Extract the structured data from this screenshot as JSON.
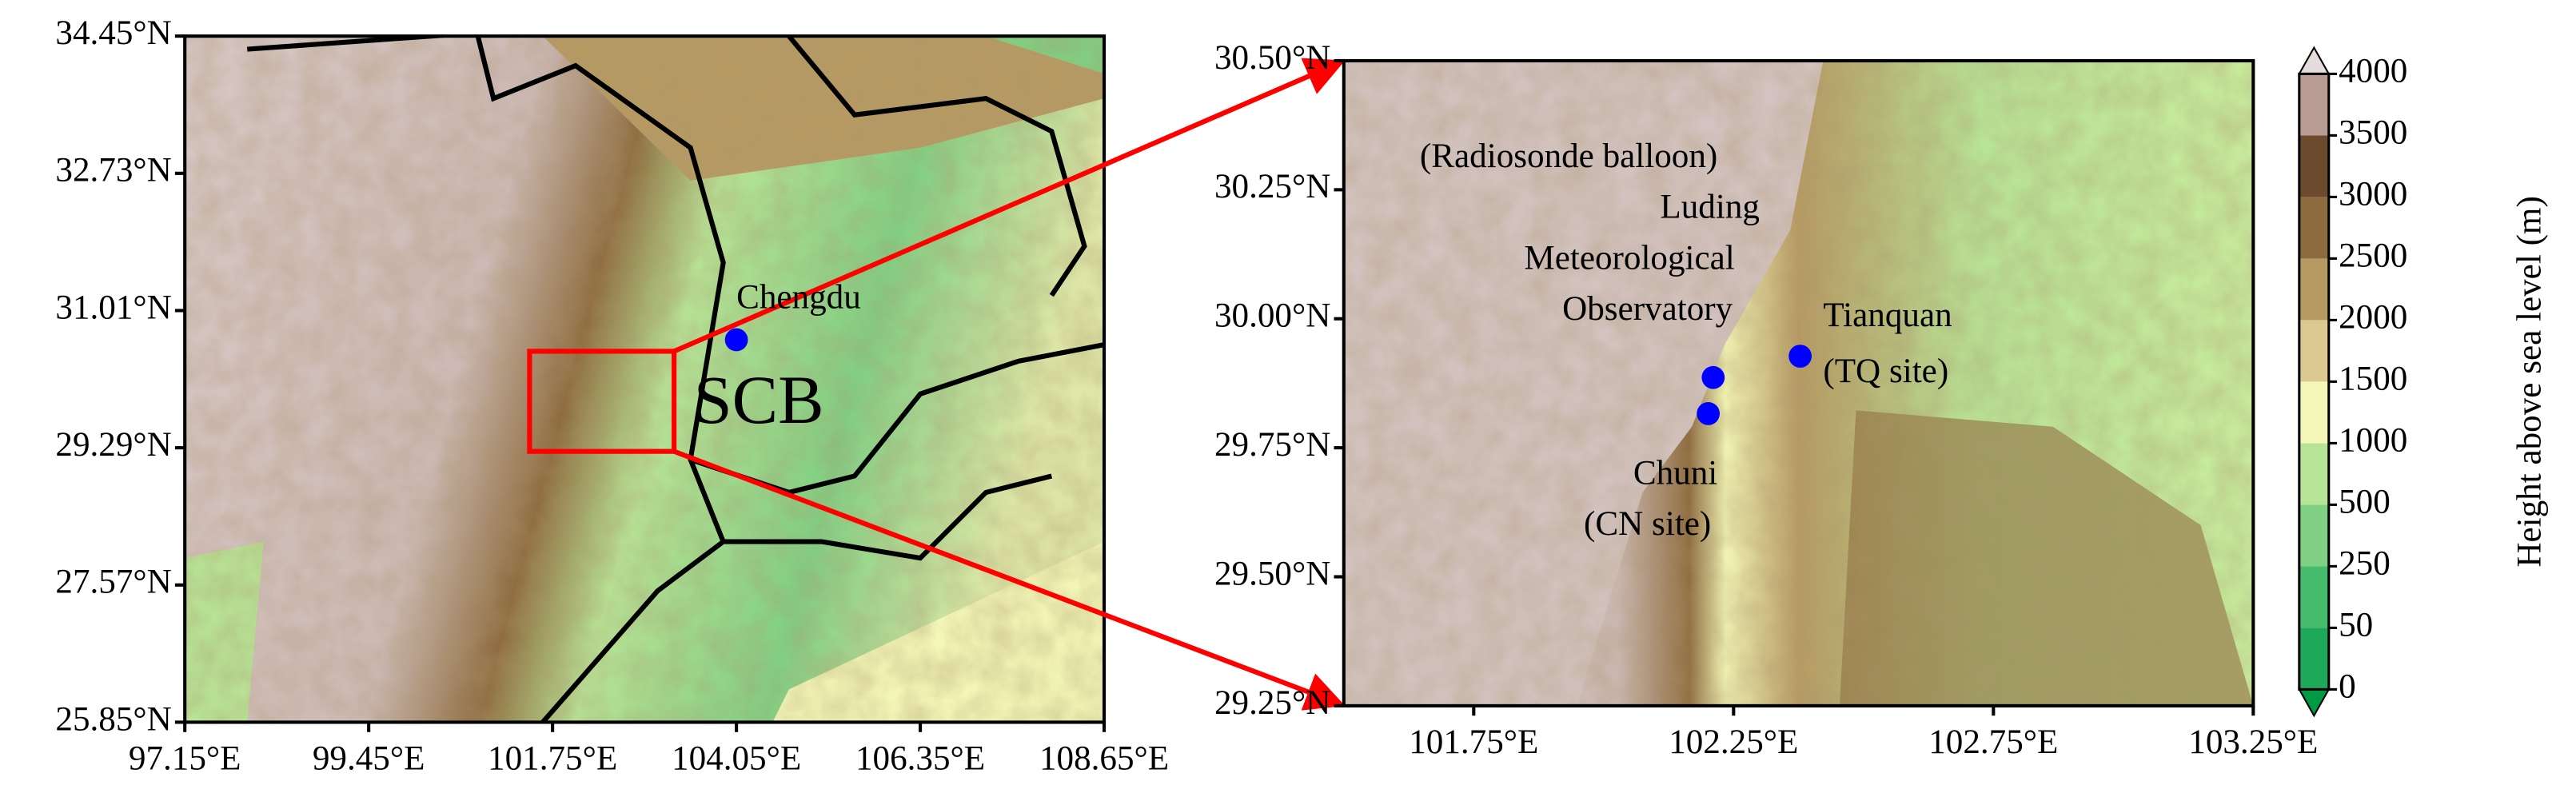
{
  "left_map": {
    "lat_range": [
      25.85,
      34.45
    ],
    "lon_range": [
      97.15,
      108.65
    ],
    "lat_ticks": [
      {
        "value": 34.45,
        "label": "34.45°N"
      },
      {
        "value": 32.73,
        "label": "32.73°N"
      },
      {
        "value": 31.01,
        "label": "31.01°N"
      },
      {
        "value": 29.29,
        "label": "29.29°N"
      },
      {
        "value": 27.57,
        "label": "27.57°N"
      },
      {
        "value": 25.85,
        "label": "25.85°N"
      }
    ],
    "lon_ticks": [
      {
        "value": 97.15,
        "label": "97.15°E"
      },
      {
        "value": 99.45,
        "label": "99.45°E"
      },
      {
        "value": 101.75,
        "label": "101.75°E"
      },
      {
        "value": 104.05,
        "label": "104.05°E"
      },
      {
        "value": 106.35,
        "label": "106.35°E"
      },
      {
        "value": 108.65,
        "label": "108.65°E"
      }
    ],
    "labels": [
      "Chengdu",
      "SCB"
    ]
  },
  "right_map": {
    "lat_range": [
      29.25,
      30.5
    ],
    "lon_range": [
      101.5,
      103.25
    ],
    "lat_ticks": [
      {
        "value": 30.5,
        "label": "30.50°N"
      },
      {
        "value": 30.25,
        "label": "30.25°N"
      },
      {
        "value": 30.0,
        "label": "30.00°N"
      },
      {
        "value": 29.75,
        "label": "29.75°N"
      },
      {
        "value": 29.5,
        "label": "29.50°N"
      },
      {
        "value": 29.25,
        "label": "29.25°N"
      }
    ],
    "lon_ticks": [
      {
        "value": 101.75,
        "label": "101.75°E"
      },
      {
        "value": 102.25,
        "label": "102.25°E"
      },
      {
        "value": 102.75,
        "label": "102.75°E"
      },
      {
        "value": 103.25,
        "label": "103.25°E"
      }
    ],
    "labels": [
      "(Radiosonde balloon)",
      "Luding",
      "Meteorological",
      "Observatory",
      "Tianquan",
      "(TQ site)",
      "Chuni",
      "(CN site)"
    ]
  },
  "colorbar": {
    "title": "Height above sea level (m)",
    "levels": [
      0,
      50,
      250,
      500,
      1000,
      1500,
      2000,
      2500,
      3000,
      3500,
      4000
    ],
    "colors": [
      "#1ea85a",
      "#45bb6c",
      "#80d083",
      "#b8e496",
      "#f3f6b6",
      "#dcc98f",
      "#b79a62",
      "#8e6b3e",
      "#6b4a2e",
      "#b99c94"
    ],
    "under_color": "#009a44",
    "over_color": "#e6dcdc"
  }
}
